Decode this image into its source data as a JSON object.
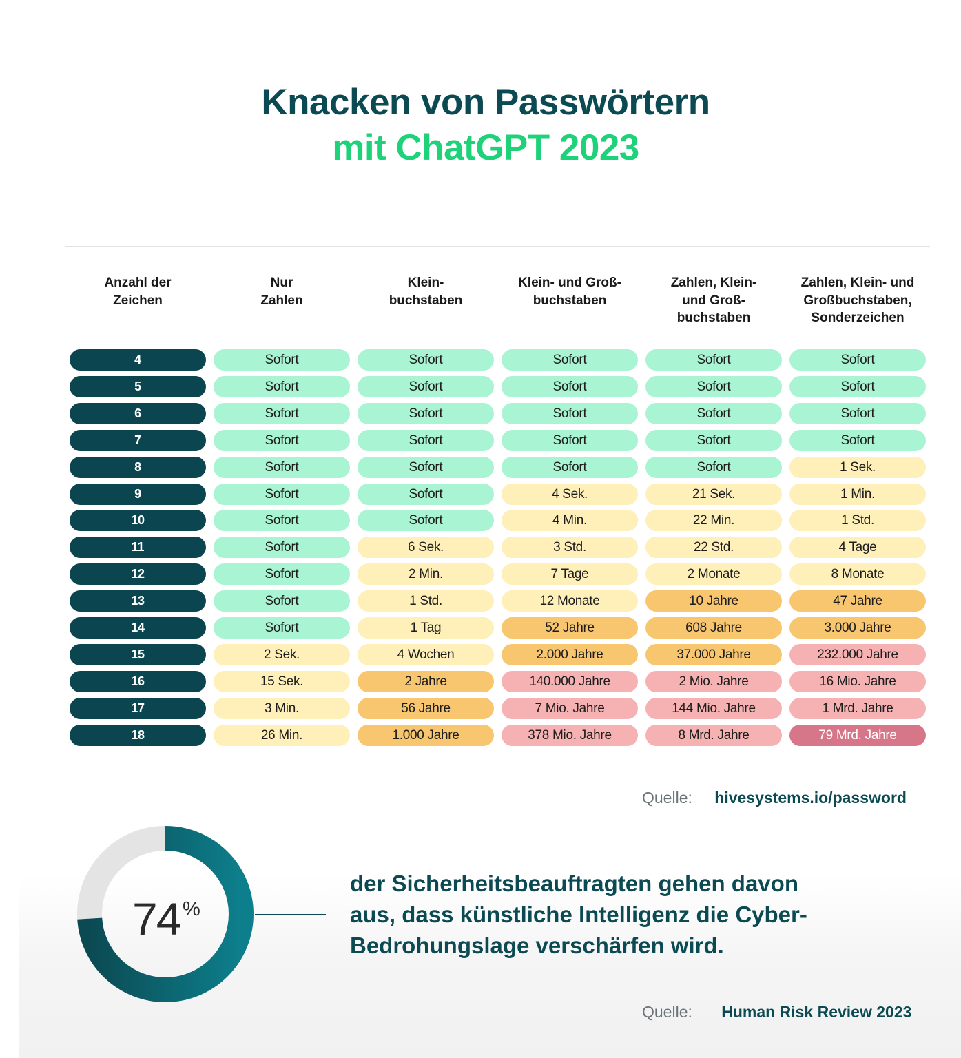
{
  "title": {
    "line1": "Knacken von Passwörtern",
    "line2": "mit ChatGPT 2023"
  },
  "colors": {
    "brand_dark": "#0b4a52",
    "brand_green": "#1ed27a",
    "instant": "#a9f5d3",
    "short": "#fef0b8",
    "medium": "#f8c66f",
    "long": "#f6b2b3",
    "extreme": "#d67688"
  },
  "chart_data": {
    "type": "table",
    "columns": [
      "Anzahl der\nZeichen",
      "Nur\nZahlen",
      "Klein-\nbuchstaben",
      "Klein- und Groß-\nbuchstaben",
      "Zahlen, Klein-\nund Groß-\nbuchstaben",
      "Zahlen, Klein- und\nGroßbuchstaben,\nSonderzeichen"
    ],
    "rows": [
      {
        "length": "4",
        "values": [
          "Sofort",
          "Sofort",
          "Sofort",
          "Sofort",
          "Sofort"
        ],
        "levels": [
          "instant",
          "instant",
          "instant",
          "instant",
          "instant"
        ]
      },
      {
        "length": "5",
        "values": [
          "Sofort",
          "Sofort",
          "Sofort",
          "Sofort",
          "Sofort"
        ],
        "levels": [
          "instant",
          "instant",
          "instant",
          "instant",
          "instant"
        ]
      },
      {
        "length": "6",
        "values": [
          "Sofort",
          "Sofort",
          "Sofort",
          "Sofort",
          "Sofort"
        ],
        "levels": [
          "instant",
          "instant",
          "instant",
          "instant",
          "instant"
        ]
      },
      {
        "length": "7",
        "values": [
          "Sofort",
          "Sofort",
          "Sofort",
          "Sofort",
          "Sofort"
        ],
        "levels": [
          "instant",
          "instant",
          "instant",
          "instant",
          "instant"
        ]
      },
      {
        "length": "8",
        "values": [
          "Sofort",
          "Sofort",
          "Sofort",
          "Sofort",
          "1 Sek."
        ],
        "levels": [
          "instant",
          "instant",
          "instant",
          "instant",
          "short"
        ]
      },
      {
        "length": "9",
        "values": [
          "Sofort",
          "Sofort",
          "4 Sek.",
          "21 Sek.",
          "1 Min."
        ],
        "levels": [
          "instant",
          "instant",
          "short",
          "short",
          "short"
        ]
      },
      {
        "length": "10",
        "values": [
          "Sofort",
          "Sofort",
          "4 Min.",
          "22 Min.",
          "1 Std."
        ],
        "levels": [
          "instant",
          "instant",
          "short",
          "short",
          "short"
        ]
      },
      {
        "length": "11",
        "values": [
          "Sofort",
          "6 Sek.",
          "3 Std.",
          "22 Std.",
          "4 Tage"
        ],
        "levels": [
          "instant",
          "short",
          "short",
          "short",
          "short"
        ]
      },
      {
        "length": "12",
        "values": [
          "Sofort",
          "2 Min.",
          "7 Tage",
          "2 Monate",
          "8 Monate"
        ],
        "levels": [
          "instant",
          "short",
          "short",
          "short",
          "short"
        ]
      },
      {
        "length": "13",
        "values": [
          "Sofort",
          "1 Std.",
          "12 Monate",
          "10 Jahre",
          "47 Jahre"
        ],
        "levels": [
          "instant",
          "short",
          "short",
          "medium",
          "medium"
        ]
      },
      {
        "length": "14",
        "values": [
          "Sofort",
          "1 Tag",
          "52 Jahre",
          "608 Jahre",
          "3.000 Jahre"
        ],
        "levels": [
          "instant",
          "short",
          "medium",
          "medium",
          "medium"
        ]
      },
      {
        "length": "15",
        "values": [
          "2 Sek.",
          "4 Wochen",
          "2.000 Jahre",
          "37.000 Jahre",
          "232.000 Jahre"
        ],
        "levels": [
          "short",
          "short",
          "medium",
          "medium",
          "long"
        ]
      },
      {
        "length": "16",
        "values": [
          "15 Sek.",
          "2 Jahre",
          "140.000 Jahre",
          "2 Mio. Jahre",
          "16 Mio. Jahre"
        ],
        "levels": [
          "short",
          "medium",
          "long",
          "long",
          "long"
        ]
      },
      {
        "length": "17",
        "values": [
          "3 Min.",
          "56 Jahre",
          "7 Mio. Jahre",
          "144 Mio. Jahre",
          "1 Mrd. Jahre"
        ],
        "levels": [
          "short",
          "medium",
          "long",
          "long",
          "long"
        ]
      },
      {
        "length": "18",
        "values": [
          "26 Min.",
          "1.000 Jahre",
          "378 Mio. Jahre",
          "8 Mrd. Jahre",
          "79 Mrd. Jahre"
        ],
        "levels": [
          "short",
          "medium",
          "long",
          "long",
          "extreme"
        ]
      }
    ]
  },
  "source_1": {
    "label": "Quelle:",
    "value": "hivesystems.io/password"
  },
  "stat": {
    "percent": 74,
    "number": "74",
    "sign": "%",
    "text": "der Sicherheitsbeauftragten gehen davon\naus, dass künstliche Intelligenz die Cyber-\nBedrohungslage verschärfen wird."
  },
  "source_2": {
    "label": "Quelle:",
    "value": "Human Risk Review 2023"
  }
}
